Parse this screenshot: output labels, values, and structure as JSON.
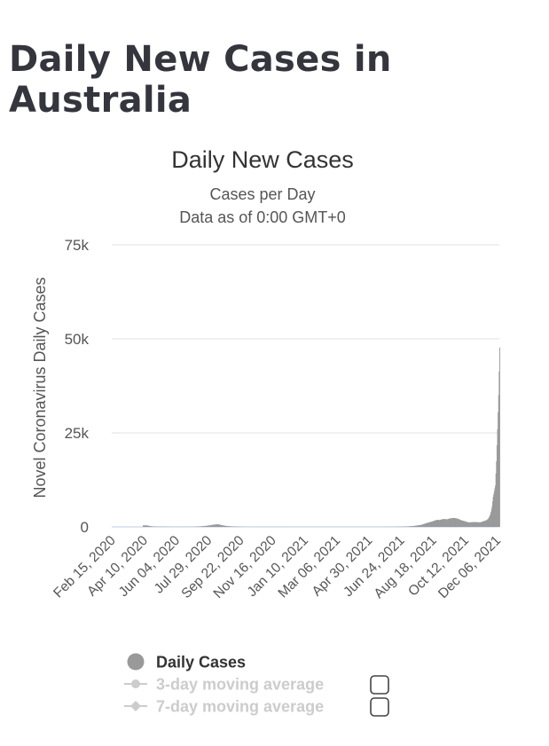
{
  "page": {
    "title": "Daily New Cases in Australia"
  },
  "chart_data": {
    "type": "bar",
    "title": "Daily New Cases",
    "subtitles": [
      "Cases per Day",
      "Data as of 0:00 GMT+0"
    ],
    "ylabel": "Novel Coronavirus Daily Cases",
    "xlabel": "",
    "ylim": [
      0,
      75000
    ],
    "yticks": [
      0,
      25000,
      50000,
      75000
    ],
    "ytick_labels": [
      "0",
      "25k",
      "50k",
      "75k"
    ],
    "x_start": "2020-01-23",
    "x_end": "2022-01-05",
    "xtick_labels": [
      "Feb 15, 2020",
      "Apr 10, 2020",
      "Jun 04, 2020",
      "Jul 29, 2020",
      "Sep 22, 2020",
      "Nov 16, 2020",
      "Jan 10, 2021",
      "Mar 06, 2021",
      "Apr 30, 2021",
      "Jun 24, 2021",
      "Aug 18, 2021",
      "Oct 12, 2021",
      "Dec 06, 2021"
    ],
    "grid": true,
    "legend_position": "bottom",
    "colors": {
      "bar": "#999999",
      "grid": "#e6e6e6",
      "baseline": "#ccd6eb"
    },
    "series": [
      {
        "name": "Daily Cases",
        "color": "#999999",
        "enabled": true,
        "points": [
          [
            "2020-03-20",
            400
          ],
          [
            "2020-03-25",
            420
          ],
          [
            "2020-03-28",
            380
          ],
          [
            "2020-04-02",
            200
          ],
          [
            "2020-04-10",
            80
          ],
          [
            "2020-05-15",
            20
          ],
          [
            "2020-06-20",
            30
          ],
          [
            "2020-07-05",
            150
          ],
          [
            "2020-07-15",
            300
          ],
          [
            "2020-07-25",
            520
          ],
          [
            "2020-07-31",
            650
          ],
          [
            "2020-08-05",
            700
          ],
          [
            "2020-08-12",
            450
          ],
          [
            "2020-08-20",
            250
          ],
          [
            "2020-08-30",
            120
          ],
          [
            "2020-09-10",
            60
          ],
          [
            "2020-09-25",
            20
          ],
          [
            "2020-11-20",
            15
          ],
          [
            "2021-01-01",
            20
          ],
          [
            "2021-06-15",
            20
          ],
          [
            "2021-07-10",
            60
          ],
          [
            "2021-07-20",
            120
          ],
          [
            "2021-07-31",
            250
          ],
          [
            "2021-08-07",
            400
          ],
          [
            "2021-08-14",
            550
          ],
          [
            "2021-08-21",
            900
          ],
          [
            "2021-08-28",
            1200
          ],
          [
            "2021-09-04",
            1500
          ],
          [
            "2021-09-08",
            1700
          ],
          [
            "2021-09-12",
            1900
          ],
          [
            "2021-09-16",
            1800
          ],
          [
            "2021-09-20",
            2000
          ],
          [
            "2021-09-25",
            2100
          ],
          [
            "2021-09-30",
            2000
          ],
          [
            "2021-10-04",
            2200
          ],
          [
            "2021-10-08",
            2300
          ],
          [
            "2021-10-12",
            2400
          ],
          [
            "2021-10-16",
            2300
          ],
          [
            "2021-10-20",
            2200
          ],
          [
            "2021-10-24",
            1900
          ],
          [
            "2021-10-28",
            1700
          ],
          [
            "2021-11-02",
            1500
          ],
          [
            "2021-11-06",
            1300
          ],
          [
            "2021-11-10",
            1200
          ],
          [
            "2021-11-15",
            1250
          ],
          [
            "2021-11-20",
            1300
          ],
          [
            "2021-11-25",
            1250
          ],
          [
            "2021-11-30",
            1200
          ],
          [
            "2021-12-04",
            1400
          ],
          [
            "2021-12-08",
            1600
          ],
          [
            "2021-12-12",
            1800
          ],
          [
            "2021-12-15",
            2200
          ],
          [
            "2021-12-18",
            3000
          ],
          [
            "2021-12-20",
            4000
          ],
          [
            "2021-12-22",
            5500
          ],
          [
            "2021-12-24",
            8000
          ],
          [
            "2021-12-26",
            9500
          ],
          [
            "2021-12-28",
            11000
          ],
          [
            "2021-12-30",
            17500
          ],
          [
            "2022-01-01",
            26000
          ],
          [
            "2022-01-03",
            35000
          ],
          [
            "2022-01-05",
            47700
          ]
        ]
      },
      {
        "name": "3-day moving average",
        "color": "#cccccc",
        "enabled": false,
        "points": []
      },
      {
        "name": "7-day moving average",
        "color": "#cccccc",
        "enabled": false,
        "points": []
      }
    ]
  }
}
